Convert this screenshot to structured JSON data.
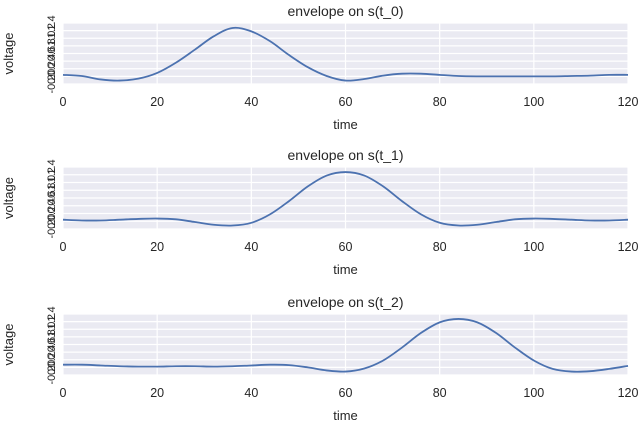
{
  "figure": {
    "background": "#ffffff",
    "axes_background": "#EAEAF2",
    "grid_color": "#ffffff",
    "line_color": "#4C72B0"
  },
  "chart_data": [
    {
      "type": "line",
      "title": "envelope on s(t_0)",
      "xlabel": "time",
      "ylabel": "voltage",
      "xlim": [
        0,
        120
      ],
      "ylim": [
        -0.2,
        1.4
      ],
      "xticks": [
        0,
        20,
        40,
        60,
        80,
        100,
        120
      ],
      "xtick_labels": [
        "0",
        "20",
        "40",
        "60",
        "80",
        "100",
        "120"
      ],
      "yticks": [
        -0.2,
        0.0,
        0.2,
        0.4,
        0.6,
        0.8,
        1.0,
        1.2,
        1.4
      ],
      "ytick_labels": [
        "-0.2",
        "0.0",
        "0.2",
        "0.4",
        "0.6",
        "0.8",
        "1.0",
        "1.2",
        "1.4"
      ],
      "grid": true,
      "series": [
        {
          "name": "envelope",
          "x": [
            0,
            4,
            8,
            12,
            16,
            20,
            24,
            28,
            32,
            36,
            40,
            44,
            48,
            52,
            56,
            60,
            64,
            68,
            72,
            76,
            80,
            84,
            88,
            92,
            96,
            100,
            104,
            108,
            112,
            116,
            120
          ],
          "values": [
            0.04,
            0.01,
            -0.08,
            -0.11,
            -0.06,
            0.09,
            0.36,
            0.7,
            1.05,
            1.27,
            1.18,
            0.92,
            0.56,
            0.24,
            0.01,
            -0.11,
            -0.07,
            0.02,
            0.07,
            0.07,
            0.04,
            0.01,
            0.0,
            0.0,
            0.0,
            0.0,
            0.0,
            0.01,
            0.02,
            0.04,
            0.04
          ]
        }
      ]
    },
    {
      "type": "line",
      "title": "envelope on s(t_1)",
      "xlabel": "time",
      "ylabel": "voltage",
      "xlim": [
        0,
        120
      ],
      "ylim": [
        -0.2,
        1.4
      ],
      "xticks": [
        0,
        20,
        40,
        60,
        80,
        100,
        120
      ],
      "xtick_labels": [
        "0",
        "20",
        "40",
        "60",
        "80",
        "100",
        "120"
      ],
      "yticks": [
        -0.2,
        0.0,
        0.2,
        0.4,
        0.6,
        0.8,
        1.0,
        1.2,
        1.4
      ],
      "ytick_labels": [
        "-0.2",
        "0.0",
        "0.2",
        "0.4",
        "0.6",
        "0.8",
        "1.0",
        "1.2",
        "1.4"
      ],
      "grid": true,
      "series": [
        {
          "name": "envelope",
          "x": [
            0,
            4,
            8,
            12,
            16,
            20,
            24,
            28,
            32,
            36,
            40,
            44,
            48,
            52,
            56,
            60,
            64,
            68,
            72,
            76,
            80,
            84,
            88,
            92,
            96,
            100,
            104,
            108,
            112,
            116,
            120
          ],
          "values": [
            0.04,
            0.02,
            0.02,
            0.04,
            0.06,
            0.07,
            0.05,
            -0.02,
            -0.09,
            -0.11,
            -0.04,
            0.18,
            0.52,
            0.9,
            1.18,
            1.27,
            1.18,
            0.9,
            0.52,
            0.18,
            -0.04,
            -0.11,
            -0.09,
            -0.02,
            0.05,
            0.07,
            0.06,
            0.04,
            0.02,
            0.02,
            0.04
          ]
        }
      ]
    },
    {
      "type": "line",
      "title": "envelope on s(t_2)",
      "xlabel": "time",
      "ylabel": "voltage",
      "xlim": [
        0,
        120
      ],
      "ylim": [
        -0.2,
        1.4
      ],
      "xticks": [
        0,
        20,
        40,
        60,
        80,
        100,
        120
      ],
      "xtick_labels": [
        "0",
        "20",
        "40",
        "60",
        "80",
        "100",
        "120"
      ],
      "yticks": [
        -0.2,
        0.0,
        0.2,
        0.4,
        0.6,
        0.8,
        1.0,
        1.2,
        1.4
      ],
      "ytick_labels": [
        "-0.2",
        "0.0",
        "0.2",
        "0.4",
        "0.6",
        "0.8",
        "1.0",
        "1.2",
        "1.4"
      ],
      "grid": true,
      "series": [
        {
          "name": "envelope",
          "x": [
            0,
            4,
            8,
            12,
            16,
            20,
            24,
            28,
            32,
            36,
            40,
            44,
            48,
            52,
            56,
            60,
            64,
            68,
            72,
            76,
            80,
            84,
            88,
            92,
            96,
            100,
            104,
            108,
            112,
            116,
            120
          ],
          "values": [
            0.07,
            0.07,
            0.05,
            0.03,
            0.02,
            0.02,
            0.03,
            0.03,
            0.02,
            0.03,
            0.05,
            0.07,
            0.06,
            0.0,
            -0.08,
            -0.11,
            -0.03,
            0.18,
            0.52,
            0.9,
            1.18,
            1.27,
            1.18,
            0.9,
            0.52,
            0.18,
            -0.04,
            -0.11,
            -0.1,
            -0.04,
            0.04
          ]
        }
      ]
    }
  ]
}
